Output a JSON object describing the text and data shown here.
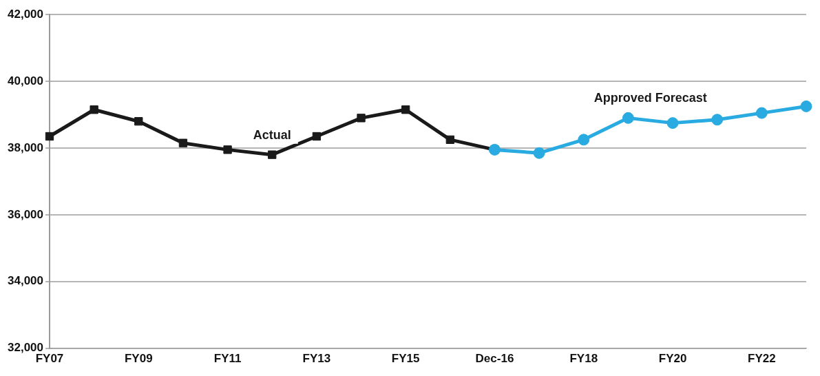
{
  "chart_data": {
    "type": "line",
    "categories": [
      "FY07",
      null,
      "FY09",
      null,
      "FY11",
      null,
      "FY13",
      null,
      "FY15",
      null,
      "Dec-16",
      null,
      "FY18",
      null,
      "FY20",
      null,
      "FY22",
      null
    ],
    "series": [
      {
        "name": "Actual",
        "color": "#1a1a1a",
        "marker": "square",
        "values": [
          38350,
          39150,
          38800,
          38150,
          37950,
          37800,
          38350,
          38900,
          39150,
          38250,
          37950,
          null,
          null,
          null,
          null,
          null,
          null,
          null
        ]
      },
      {
        "name": "Approved Forecast",
        "color": "#29abe2",
        "marker": "circle",
        "values": [
          null,
          null,
          null,
          null,
          null,
          null,
          null,
          null,
          null,
          null,
          37950,
          37850,
          38250,
          38900,
          38750,
          38850,
          39050,
          39250
        ]
      }
    ],
    "ylim": [
      32000,
      42000
    ],
    "yticks": [
      {
        "value": 32000,
        "label": "32,000"
      },
      {
        "value": 34000,
        "label": "34,000"
      },
      {
        "value": 36000,
        "label": "36,000"
      },
      {
        "value": 38000,
        "label": "38,000"
      },
      {
        "value": 40000,
        "label": "40,000"
      },
      {
        "value": 42000,
        "label": "42,000"
      }
    ],
    "grid": "y",
    "legend": false
  }
}
